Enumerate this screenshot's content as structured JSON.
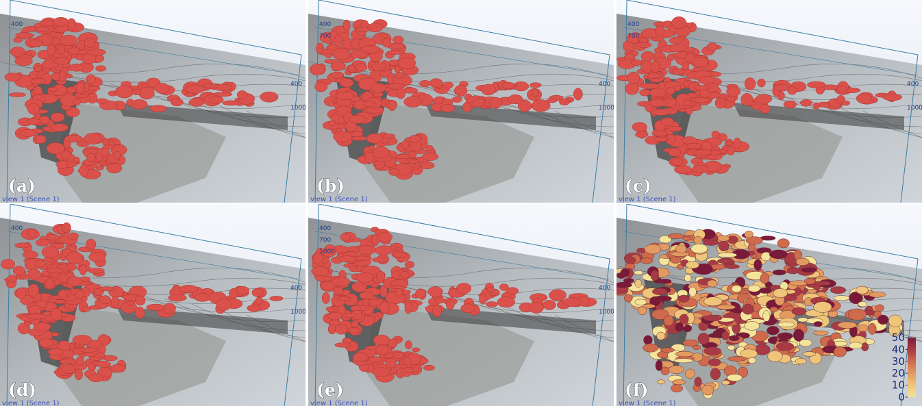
{
  "panels": [
    {
      "label": "(a)",
      "view_label": "view 1 (Scene 1)",
      "left_axis": [
        400
      ],
      "right_axis": [
        400,
        1000
      ]
    },
    {
      "label": "(b)",
      "view_label": "view 1 (Scene 1)",
      "left_axis": [
        400,
        700
      ],
      "right_axis": [
        400,
        1000
      ]
    },
    {
      "label": "(c)",
      "view_label": "view 1 (Scene 1)",
      "left_axis": [
        400,
        700
      ],
      "right_axis": [
        400,
        1000
      ]
    },
    {
      "label": "(d)",
      "view_label": "view 1 (Scene 1)",
      "left_axis": [
        400
      ],
      "right_axis": [
        400,
        1000
      ]
    },
    {
      "label": "(e)",
      "view_label": "view 1 (Scene 1)",
      "left_axis": [
        400,
        700,
        1000
      ],
      "right_axis": [
        400,
        1000
      ]
    },
    {
      "label": "(f)",
      "view_label": "view 1 (Scene 1)",
      "left_axis": [],
      "right_axis": [],
      "colorbar": {
        "range": [
          0,
          50
        ],
        "ticks": [
          50,
          40,
          30,
          20,
          10,
          0
        ]
      }
    }
  ]
}
